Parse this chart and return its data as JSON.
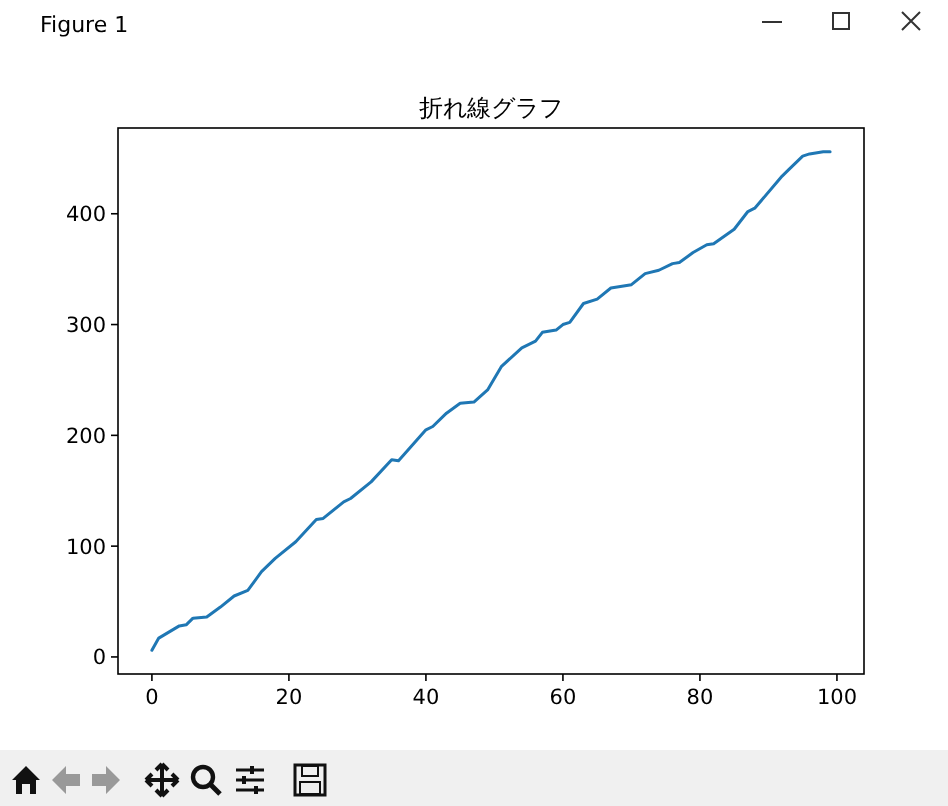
{
  "chart_data": {
    "type": "line",
    "title": "折れ線グラフ",
    "annotations": [
      "Figure 1"
    ],
    "x": [
      0,
      1,
      4,
      5,
      6,
      8,
      10,
      12,
      14,
      16,
      18,
      21,
      24,
      25,
      28,
      29,
      32,
      35,
      36,
      40,
      41,
      43,
      45,
      47,
      49,
      51,
      54,
      56,
      57,
      59,
      60,
      61,
      63,
      65,
      67,
      70,
      72,
      74,
      76,
      77,
      79,
      81,
      82,
      85,
      87,
      88,
      92,
      93,
      95,
      96,
      98,
      99
    ],
    "series": [
      {
        "color": "#1f77b4",
        "values": [
          6,
          17,
          28,
          29,
          35,
          36,
          45,
          55,
          60,
          77,
          89,
          104,
          124,
          125,
          140,
          143,
          158,
          178,
          177,
          205,
          208,
          220,
          229,
          230,
          241,
          262,
          279,
          285,
          293,
          295,
          300,
          302,
          319,
          323,
          333,
          336,
          346,
          349,
          355,
          356,
          365,
          372,
          373,
          386,
          402,
          405,
          434,
          440,
          452,
          454,
          456,
          456
        ]
      }
    ],
    "xlim": [
      -4.95,
      103.95
    ],
    "ylim": [
      -15.4,
      477.4
    ],
    "xticks": [
      0,
      20,
      40,
      60,
      80,
      100
    ],
    "yticks": [
      0,
      100,
      200,
      300,
      400
    ],
    "grid": false,
    "marker": "none",
    "line_style": "solid"
  }
}
